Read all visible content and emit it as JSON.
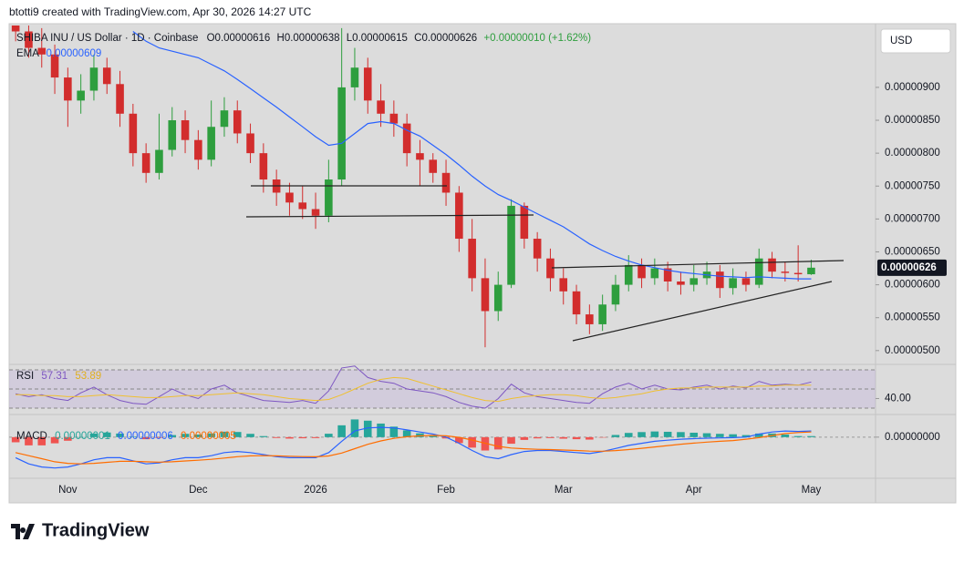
{
  "attribution": "btotti9 created with TradingView.com, Apr 30, 2026 14:27 UTC",
  "brand": "TradingView",
  "chart_data": [
    {
      "type": "candlestick",
      "symbol": "SHIBA INU / US Dollar · 1D · Coinbase",
      "ohlc": [
        "O0.00000616",
        "H0.00000638",
        "L0.00000615",
        "C0.00000626",
        "+0.00000010 (+1.62%)"
      ],
      "currency": "USD",
      "price_label": "0.00000626",
      "categories": [
        null,
        null,
        null,
        null,
        "Nov",
        null,
        null,
        null,
        null,
        null,
        null,
        null,
        null,
        null,
        "Dec",
        null,
        null,
        null,
        null,
        null,
        null,
        null,
        null,
        "2026",
        null,
        null,
        null,
        null,
        null,
        null,
        null,
        null,
        null,
        "Feb",
        null,
        null,
        null,
        null,
        null,
        null,
        null,
        null,
        "Mar",
        null,
        null,
        null,
        null,
        null,
        null,
        null,
        null,
        null,
        "Apr",
        null,
        null,
        null,
        null,
        null,
        null,
        null,
        null,
        "May"
      ],
      "open": [
        1e-05,
        9.85e-06,
        9.6e-06,
        9.5e-06,
        9.15e-06,
        8.8e-06,
        8.95e-06,
        9.3e-06,
        9.05e-06,
        8.6e-06,
        8e-06,
        7.7e-06,
        8.05e-06,
        8.5e-06,
        8.2e-06,
        7.9e-06,
        8.4e-06,
        8.65e-06,
        8.3e-06,
        8e-06,
        7.6e-06,
        7.4e-06,
        7.25e-06,
        7.15e-06,
        7.05e-06,
        7.6e-06,
        9e-06,
        9.3e-06,
        8.8e-06,
        8.6e-06,
        8.45e-06,
        8e-06,
        7.9e-06,
        7.7e-06,
        7.4e-06,
        6.7e-06,
        6.1e-06,
        5.6e-06,
        6e-06,
        7.2e-06,
        6.7e-06,
        6.4e-06,
        6.1e-06,
        5.9e-06,
        5.55e-06,
        5.4e-06,
        5.7e-06,
        6e-06,
        6.3e-06,
        6.1e-06,
        6.25e-06,
        6.05e-06,
        6e-06,
        6.1e-06,
        6.2e-06,
        5.95e-06,
        6.1e-06,
        6e-06,
        6.4e-06,
        6.2e-06,
        6.18e-06,
        6.16e-06
      ],
      "high": [
        1.015e-05,
        1e-05,
        9.9e-06,
        9.65e-06,
        9.3e-06,
        9.2e-06,
        9.5e-06,
        9.45e-06,
        9.25e-06,
        8.75e-06,
        8.15e-06,
        8.6e-06,
        8.7e-06,
        8.65e-06,
        8.35e-06,
        8.8e-06,
        8.85e-06,
        8.8e-06,
        8.45e-06,
        8.15e-06,
        7.75e-06,
        7.55e-06,
        7.5e-06,
        7.4e-06,
        7.9e-06,
        9.9e-06,
        9.6e-06,
        9.45e-06,
        9.05e-06,
        8.8e-06,
        8.6e-06,
        8.2e-06,
        8e-06,
        7.9e-06,
        7.5e-06,
        7e-06,
        6.4e-06,
        6.2e-06,
        7.3e-06,
        7.25e-06,
        6.8e-06,
        6.55e-06,
        6.25e-06,
        6e-06,
        5.7e-06,
        5.85e-06,
        6.15e-06,
        6.45e-06,
        6.4e-06,
        6.4e-06,
        6.35e-06,
        6.2e-06,
        6.3e-06,
        6.35e-06,
        6.3e-06,
        6.25e-06,
        6.2e-06,
        6.55e-06,
        6.5e-06,
        6.35e-06,
        6.6e-06,
        6.38e-06
      ],
      "low": [
        9.7e-06,
        9.45e-06,
        9.3e-06,
        8.9e-06,
        8.4e-06,
        8.6e-06,
        8.8e-06,
        8.9e-06,
        8.4e-06,
        7.8e-06,
        7.55e-06,
        7.6e-06,
        7.95e-06,
        8e-06,
        7.75e-06,
        7.8e-06,
        8.25e-06,
        8.15e-06,
        7.85e-06,
        7.4e-06,
        7.2e-06,
        7.05e-06,
        7e-06,
        6.85e-06,
        6.95e-06,
        7.5e-06,
        8.8e-06,
        8.6e-06,
        8.4e-06,
        8.25e-06,
        7.8e-06,
        7.5e-06,
        7.55e-06,
        7.2e-06,
        6.5e-06,
        5.9e-06,
        5.05e-06,
        5.45e-06,
        5.95e-06,
        6.55e-06,
        6.2e-06,
        5.9e-06,
        5.7e-06,
        5.4e-06,
        5.25e-06,
        5.3e-06,
        5.6e-06,
        5.9e-06,
        5.95e-06,
        6e-06,
        5.9e-06,
        5.85e-06,
        5.9e-06,
        6e-06,
        5.8e-06,
        5.85e-06,
        5.9e-06,
        5.95e-06,
        6.1e-06,
        6.05e-06,
        6.05e-06,
        6.15e-06
      ],
      "close": [
        9.85e-06,
        9.6e-06,
        9.5e-06,
        9.15e-06,
        8.8e-06,
        8.95e-06,
        9.3e-06,
        9.05e-06,
        8.6e-06,
        8e-06,
        7.7e-06,
        8.05e-06,
        8.5e-06,
        8.2e-06,
        7.9e-06,
        8.4e-06,
        8.65e-06,
        8.3e-06,
        8e-06,
        7.6e-06,
        7.4e-06,
        7.25e-06,
        7.15e-06,
        7.05e-06,
        7.6e-06,
        9e-06,
        9.3e-06,
        8.8e-06,
        8.6e-06,
        8.45e-06,
        8e-06,
        7.9e-06,
        7.7e-06,
        7.4e-06,
        6.7e-06,
        6.1e-06,
        5.6e-06,
        6e-06,
        7.2e-06,
        6.7e-06,
        6.4e-06,
        6.1e-06,
        5.9e-06,
        5.55e-06,
        5.4e-06,
        5.7e-06,
        6e-06,
        6.3e-06,
        6.1e-06,
        6.25e-06,
        6.05e-06,
        6e-06,
        6.1e-06,
        6.2e-06,
        5.95e-06,
        6.1e-06,
        6e-06,
        6.4e-06,
        6.2e-06,
        6.18e-06,
        6.16e-06,
        6.26e-06
      ],
      "up_color": "#2e9e3e",
      "down_color": "#d22d2d",
      "ylim": [
        4.79e-06,
        9.94e-06
      ],
      "yticks": [
        {
          "value": 5e-06,
          "label": "0.00000500"
        },
        {
          "value": 5.5e-06,
          "label": "0.00000550"
        },
        {
          "value": 6e-06,
          "label": "0.00000600"
        },
        {
          "value": 6.5e-06,
          "label": "0.00000650"
        },
        {
          "value": 7e-06,
          "label": "0.00000700"
        },
        {
          "value": 7.5e-06,
          "label": "0.00000750"
        },
        {
          "value": 8e-06,
          "label": "0.00000800"
        },
        {
          "value": 8.5e-06,
          "label": "0.00000850"
        },
        {
          "value": 9e-06,
          "label": "0.00000900"
        }
      ],
      "series": [
        {
          "name": "EMA",
          "color": "#2962ff",
          "value_label": "0.00000609",
          "values": [
            null,
            null,
            null,
            null,
            null,
            null,
            null,
            null,
            null,
            9.85e-06,
            9.7e-06,
            9.6e-06,
            9.55e-06,
            9.5e-06,
            9.45e-06,
            9.35e-06,
            9.25e-06,
            9.12e-06,
            8.98e-06,
            8.84e-06,
            8.7e-06,
            8.55e-06,
            8.4e-06,
            8.25e-06,
            8.12e-06,
            8.15e-06,
            8.3e-06,
            8.45e-06,
            8.48e-06,
            8.45e-06,
            8.35e-06,
            8.26e-06,
            8.12e-06,
            7.98e-06,
            7.82e-06,
            7.65e-06,
            7.5e-06,
            7.37e-06,
            7.28e-06,
            7.18e-06,
            7.08e-06,
            6.98e-06,
            6.88e-06,
            6.75e-06,
            6.62e-06,
            6.52e-06,
            6.43e-06,
            6.36e-06,
            6.3e-06,
            6.26e-06,
            6.22e-06,
            6.19e-06,
            6.17e-06,
            6.15e-06,
            6.13e-06,
            6.12e-06,
            6.11e-06,
            6.12e-06,
            6.11e-06,
            6.1e-06,
            6.09e-06,
            6.09e-06
          ]
        }
      ]
    },
    {
      "type": "line",
      "title": "RSI",
      "ylim": [
        23.3,
        75.7
      ],
      "yticks": [
        {
          "value": 40,
          "label": "40.00"
        }
      ],
      "bands": [
        30,
        50,
        70
      ],
      "band_color": "#b39ddb",
      "series": [
        {
          "color": "#7e57c2",
          "value_label": "57.31",
          "values": [
            45,
            42,
            44,
            40,
            38,
            46,
            52,
            44,
            38,
            35,
            34,
            42,
            50,
            44,
            40,
            50,
            54,
            46,
            42,
            38,
            37,
            36,
            38,
            35,
            48,
            72,
            74,
            62,
            58,
            56,
            50,
            48,
            46,
            42,
            36,
            32,
            30,
            40,
            55,
            46,
            42,
            40,
            38,
            36,
            35,
            45,
            52,
            56,
            50,
            54,
            50,
            49,
            52,
            54,
            50,
            53,
            51,
            58,
            54,
            55,
            54,
            57.31
          ]
        },
        {
          "color": "#f0c030",
          "value_label": "53.89",
          "values": [
            44,
            44,
            43,
            43,
            42,
            42,
            43,
            44,
            43,
            42,
            41,
            41,
            42,
            43,
            43,
            44,
            45,
            46,
            45,
            44,
            42,
            40,
            39,
            38,
            39,
            44,
            50,
            56,
            60,
            62,
            61,
            57,
            53,
            49,
            45,
            41,
            38,
            37,
            40,
            42,
            43,
            44,
            44,
            43,
            41,
            40,
            41,
            43,
            45,
            48,
            50,
            51,
            51,
            52,
            52,
            52,
            52,
            53,
            53,
            54,
            54,
            53.89
          ]
        }
      ]
    },
    {
      "type": "macd",
      "title": "MACD",
      "ylim": [
        -4e-07,
        2.2e-07
      ],
      "yticks": [
        {
          "value": 0,
          "label": "0.00000000"
        }
      ],
      "histogram": {
        "up_color": "#26a69a",
        "down_color": "#ef5350",
        "value_label": "0.00000001",
        "values": [
          -5e-08,
          -8e-08,
          -8e-08,
          -6e-08,
          -3.5e-08,
          0,
          3.5e-08,
          4.5e-08,
          3.5e-08,
          5e-09,
          -2e-08,
          -7e-09,
          2e-08,
          3.2e-08,
          2.5e-08,
          3.6e-08,
          5.3e-08,
          5e-08,
          3.2e-08,
          1e-08,
          -8e-09,
          -1.4e-08,
          -1.1e-08,
          -9e-09,
          3.3e-08,
          1.15e-07,
          1.72e-07,
          1.6e-07,
          1.32e-07,
          1.02e-07,
          6.6e-08,
          3.7e-08,
          1.4e-08,
          -1.3e-08,
          -5.8e-08,
          -1.02e-07,
          -1.3e-07,
          -1.2e-07,
          -6.4e-08,
          -2.7e-08,
          -1.2e-08,
          -9e-09,
          -1.5e-08,
          -2e-08,
          -2.4e-08,
          -3e-09,
          2.1e-08,
          4.1e-08,
          4.9e-08,
          5.5e-08,
          5.2e-08,
          4.9e-08,
          4.3e-08,
          3.8e-08,
          3.2e-08,
          2.8e-08,
          2e-08,
          3.5e-08,
          3.5e-08,
          2.5e-08,
          1e-08,
          1e-08
        ]
      },
      "series": [
        {
          "color": "#2962ff",
          "value_label": "0.00000006",
          "values": [
            -2e-07,
            -2.6e-07,
            -2.9e-07,
            -3e-07,
            -2.9e-07,
            -2.6e-07,
            -2.2e-07,
            -2e-07,
            -2e-07,
            -2.3e-07,
            -2.6e-07,
            -2.5e-07,
            -2.2e-07,
            -2e-07,
            -2e-07,
            -1.8e-07,
            -1.5e-07,
            -1.4e-07,
            -1.5e-07,
            -1.7e-07,
            -1.9e-07,
            -2e-07,
            -2e-07,
            -2e-07,
            -1.5e-07,
            -4e-08,
            6e-08,
            9e-08,
            9.5e-08,
            9e-08,
            7e-08,
            5e-08,
            3e-08,
            0,
            -6e-08,
            -1.3e-07,
            -1.9e-07,
            -2.1e-07,
            -1.7e-07,
            -1.4e-07,
            -1.3e-07,
            -1.3e-07,
            -1.4e-07,
            -1.5e-07,
            -1.6e-07,
            -1.4e-07,
            -1.1e-07,
            -8e-08,
            -6e-08,
            -4e-08,
            -3e-08,
            -2e-08,
            -1.5e-08,
            -1e-08,
            -8e-09,
            -5e-09,
            0,
            3e-08,
            5e-08,
            6e-08,
            5.5e-08,
            6e-08
          ]
        },
        {
          "color": "#ff6d00",
          "value_label": "0.00000005",
          "values": [
            -1.5e-07,
            -1.8e-07,
            -2.1e-07,
            -2.4e-07,
            -2.55e-07,
            -2.6e-07,
            -2.55e-07,
            -2.45e-07,
            -2.35e-07,
            -2.35e-07,
            -2.4e-07,
            -2.43e-07,
            -2.4e-07,
            -2.32e-07,
            -2.25e-07,
            -2.16e-07,
            -2.03e-07,
            -1.9e-07,
            -1.82e-07,
            -1.8e-07,
            -1.82e-07,
            -1.86e-07,
            -1.89e-07,
            -1.91e-07,
            -1.83e-07,
            -1.55e-07,
            -1.12e-07,
            -7e-08,
            -3.7e-08,
            -1.2e-08,
            4e-09,
            1.3e-08,
            1.6e-08,
            1.3e-08,
            -2e-09,
            -2.8e-08,
            -6e-08,
            -9e-08,
            -1.06e-07,
            -1.13e-07,
            -1.18e-07,
            -1.21e-07,
            -1.25e-07,
            -1.3e-07,
            -1.36e-07,
            -1.37e-07,
            -1.31e-07,
            -1.21e-07,
            -1.09e-07,
            -9.5e-08,
            -8.2e-08,
            -6.9e-08,
            -5.8e-08,
            -4.8e-08,
            -4e-08,
            -3.3e-08,
            -2e-08,
            -5e-09,
            1.5e-08,
            3.5e-08,
            4.5e-08,
            5e-08
          ]
        }
      ]
    }
  ]
}
